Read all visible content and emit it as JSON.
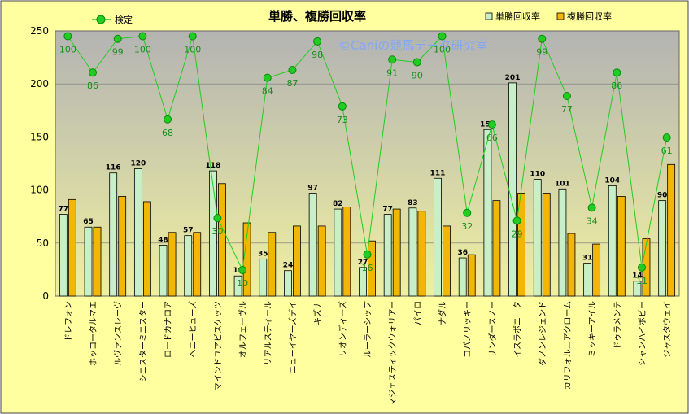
{
  "chart_data": {
    "type": "bar",
    "title": "単勝、複勝回収率",
    "watermark": "©Caniの競馬データ研究室",
    "ylim": [
      0,
      250
    ],
    "yticks": [
      0,
      50,
      100,
      150,
      200,
      250
    ],
    "categories": [
      "ドレフォン",
      "ホッコータルマエ",
      "ルヴァンスレーヴ",
      "シニスターミニスター",
      "ロードカナロア",
      "ヘニーヒューズ",
      "マインドユアビスケッツ",
      "オルフェーヴル",
      "リアルスティール",
      "ニューイヤーズデイ",
      "キズナ",
      "リオンディーズ",
      "ルーラーシップ",
      "マジェスティックウォリアー",
      "パイロ",
      "ナダル",
      "コパノリッキー",
      "サンダースノー",
      "イスラボニータ",
      "ダノンレジェンド",
      "カリフォルニアクローム",
      "ミッキーアイル",
      "ドゥラメンテ",
      "シャンハイボビー",
      "ジャスタウェイ"
    ],
    "series": [
      {
        "name": "単勝回収率",
        "kind": "bar",
        "color": "#c8f0c8",
        "values": [
          77,
          65,
          116,
          120,
          48,
          57,
          118,
          19,
          35,
          24,
          97,
          82,
          27,
          77,
          83,
          111,
          36,
          157,
          201,
          110,
          101,
          31,
          104,
          14,
          90
        ]
      },
      {
        "name": "複勝回収率",
        "kind": "bar",
        "color": "#f2b705",
        "values": [
          91,
          65,
          94,
          89,
          60,
          60,
          106,
          69,
          60,
          66,
          66,
          84,
          52,
          82,
          80,
          66,
          39,
          90,
          97,
          97,
          59,
          49,
          94,
          54,
          124
        ]
      },
      {
        "name": "検定",
        "kind": "line",
        "color": "#22cc22",
        "values": [
          100,
          86,
          99,
          100,
          68,
          100,
          30,
          10,
          84,
          87,
          98,
          73,
          16,
          91,
          90,
          100,
          32,
          66,
          29,
          99,
          77,
          34,
          86,
          11,
          61
        ]
      }
    ],
    "legend": {
      "line_label": "検定",
      "bar1_label": "単勝回収率",
      "bar2_label": "複勝回収率",
      "position": "top"
    }
  }
}
